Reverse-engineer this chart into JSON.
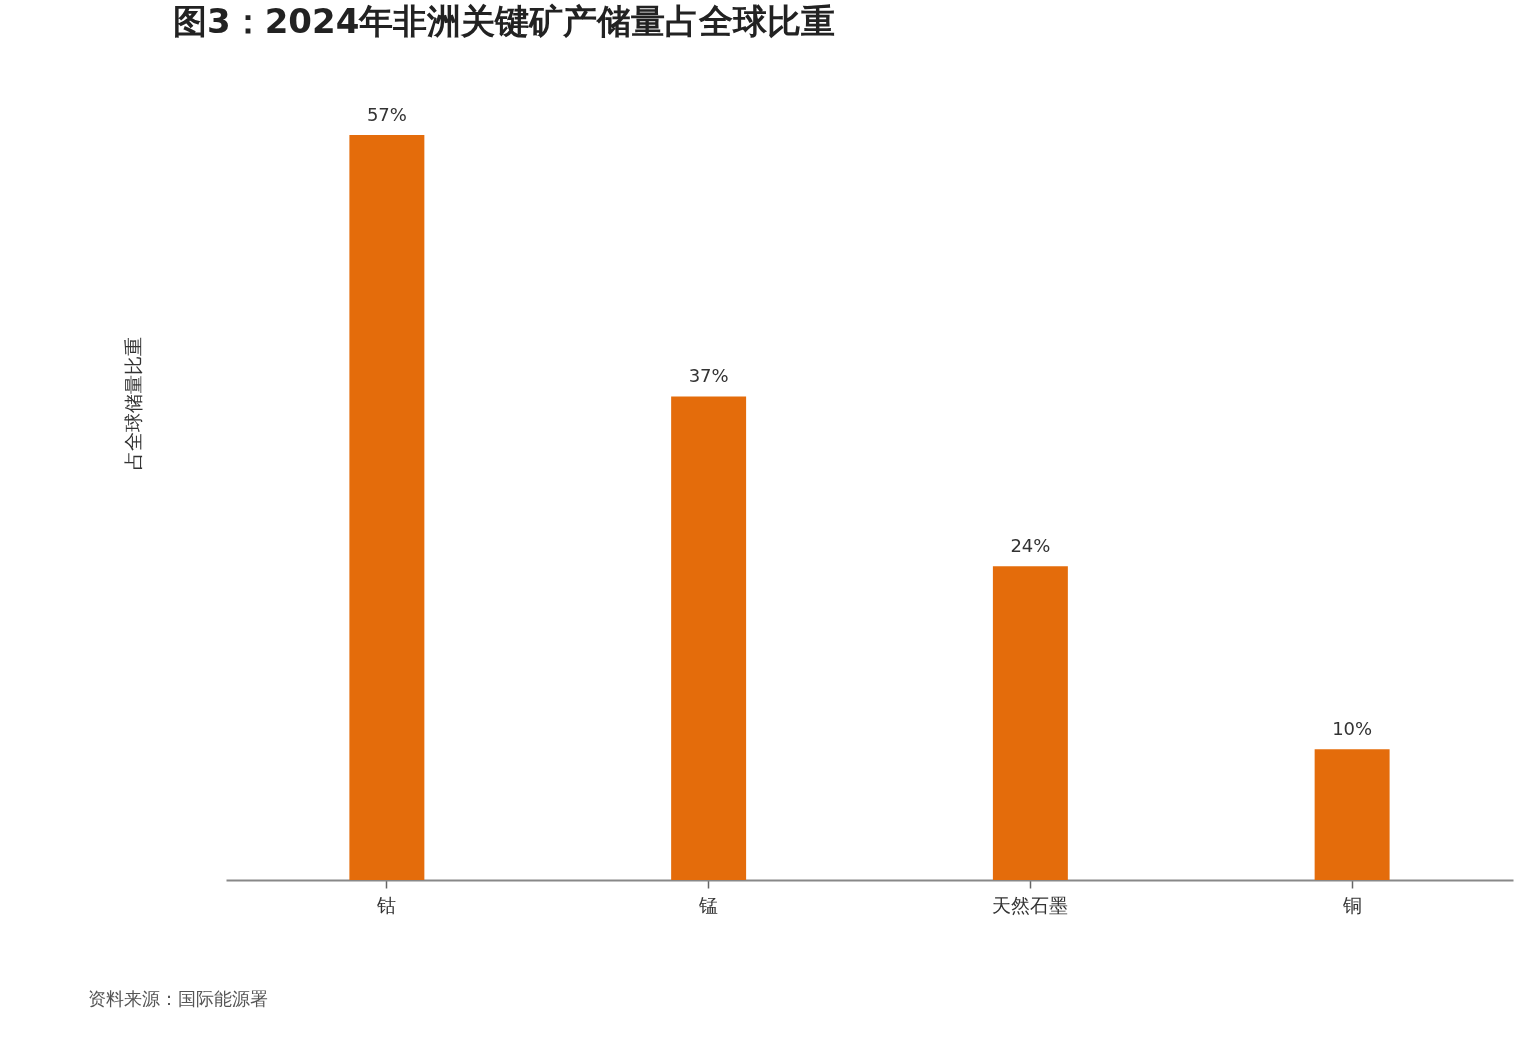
{
  "chart_data": {
    "type": "bar",
    "title": "图3：2024年非洲关键矿产储量占全球比重",
    "ylabel": "占全球储量比重",
    "categories": [
      "钴",
      "锰",
      "天然石墨",
      "铜"
    ],
    "values": [
      57,
      37,
      24,
      10
    ],
    "color": "#e46c0b",
    "value_labels": [
      "57%",
      "37%",
      "24%",
      "10%"
    ],
    "annotations": [
      "资料来源：国际能源署"
    ]
  }
}
